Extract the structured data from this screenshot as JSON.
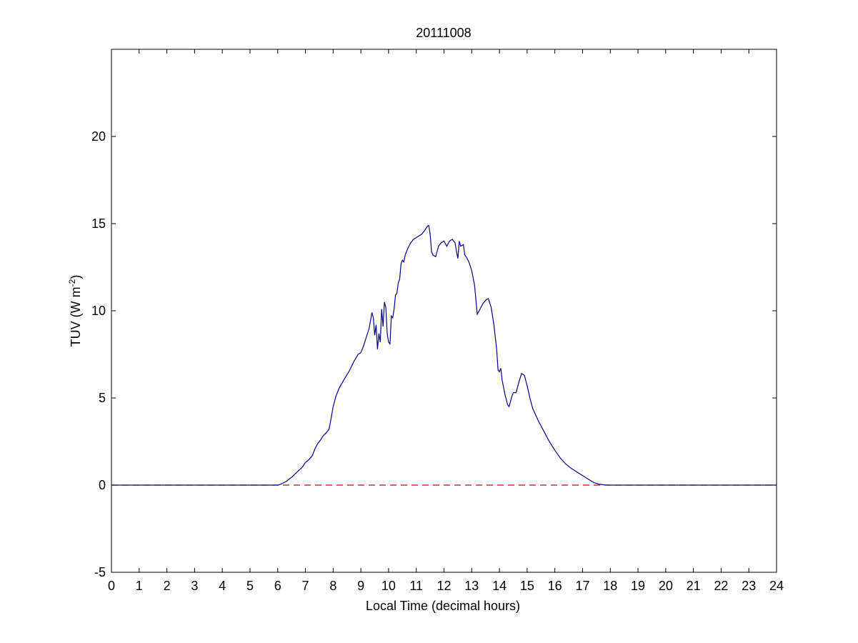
{
  "chart_data": {
    "type": "line",
    "title": "20111008",
    "xlabel": "Local Time (decimal hours)",
    "ylabel": "TUV (W m",
    "ylabel_superscript": "-2",
    "ylabel_suffix": ")",
    "xlim": [
      0,
      24
    ],
    "ylim": [
      -5,
      25
    ],
    "xticks": [
      0,
      1,
      2,
      3,
      4,
      5,
      6,
      7,
      8,
      9,
      10,
      11,
      12,
      13,
      14,
      15,
      16,
      17,
      18,
      19,
      20,
      21,
      22,
      23,
      24
    ],
    "yticks": [
      -5,
      0,
      5,
      10,
      15,
      20
    ],
    "grid": false,
    "colors": {
      "series": "#00008b",
      "reference": "#d40000",
      "axes": "#000000"
    },
    "series": [
      {
        "style": "solid",
        "color": "#00008b",
        "x": [
          0,
          6.0,
          6.1,
          6.3,
          6.5,
          6.7,
          6.9,
          7.0,
          7.15,
          7.25,
          7.35,
          7.45,
          7.55,
          7.65,
          7.75,
          7.85,
          7.9,
          8.0,
          8.1,
          8.2,
          8.3,
          8.45,
          8.6,
          8.75,
          8.9,
          9.0,
          9.1,
          9.2,
          9.3,
          9.4,
          9.45,
          9.5,
          9.55,
          9.6,
          9.65,
          9.7,
          9.75,
          9.8,
          9.85,
          9.9,
          9.95,
          10.0,
          10.05,
          10.1,
          10.15,
          10.2,
          10.25,
          10.3,
          10.35,
          10.4,
          10.45,
          10.5,
          10.55,
          10.6,
          10.7,
          10.8,
          10.9,
          11.0,
          11.1,
          11.2,
          11.3,
          11.4,
          11.45,
          11.5,
          11.55,
          11.6,
          11.7,
          11.8,
          11.9,
          12.0,
          12.1,
          12.2,
          12.3,
          12.4,
          12.45,
          12.5,
          12.55,
          12.6,
          12.7,
          12.75,
          12.8,
          12.9,
          13.0,
          13.1,
          13.2,
          13.3,
          13.4,
          13.5,
          13.6,
          13.7,
          13.8,
          13.9,
          13.95,
          14.0,
          14.05,
          14.1,
          14.2,
          14.3,
          14.35,
          14.4,
          14.45,
          14.5,
          14.6,
          14.7,
          14.8,
          14.9,
          15.0,
          15.1,
          15.2,
          15.4,
          15.6,
          15.8,
          16.0,
          16.2,
          16.4,
          16.6,
          16.8,
          17.0,
          17.2,
          17.4,
          17.6,
          17.8,
          17.9,
          18.0,
          24
        ],
        "y": [
          0,
          0,
          0.05,
          0.2,
          0.45,
          0.75,
          1.05,
          1.3,
          1.5,
          1.7,
          2.1,
          2.4,
          2.6,
          2.85,
          3.0,
          3.2,
          3.6,
          4.5,
          5.1,
          5.5,
          5.8,
          6.2,
          6.6,
          7.1,
          7.5,
          7.6,
          8.0,
          8.5,
          9.0,
          9.9,
          9.6,
          8.6,
          9.2,
          7.8,
          8.7,
          8.2,
          10.1,
          9.1,
          10.5,
          10.2,
          8.7,
          8.2,
          8.1,
          9.7,
          9.6,
          10.1,
          10.9,
          11.0,
          11.6,
          11.8,
          12.7,
          12.9,
          12.8,
          13.2,
          13.6,
          13.9,
          14.1,
          14.2,
          14.3,
          14.4,
          14.6,
          14.85,
          14.9,
          14.4,
          13.4,
          13.2,
          13.1,
          13.7,
          13.9,
          14.0,
          13.7,
          14.0,
          14.1,
          13.9,
          13.4,
          13.0,
          14.0,
          13.7,
          13.8,
          13.2,
          13.1,
          12.8,
          12.3,
          11.5,
          9.8,
          10.1,
          10.4,
          10.6,
          10.7,
          10.2,
          9.2,
          7.8,
          6.6,
          6.5,
          6.7,
          6.0,
          5.2,
          4.6,
          4.5,
          4.8,
          5.1,
          5.3,
          5.3,
          5.9,
          6.4,
          6.3,
          5.7,
          5.0,
          4.4,
          3.7,
          3.1,
          2.5,
          2.0,
          1.55,
          1.2,
          0.95,
          0.75,
          0.55,
          0.35,
          0.15,
          0.05,
          0.01,
          0,
          0,
          0
        ]
      },
      {
        "style": "dashed",
        "color": "#d40000",
        "x": [
          0,
          24
        ],
        "y": [
          0,
          0
        ]
      }
    ]
  }
}
